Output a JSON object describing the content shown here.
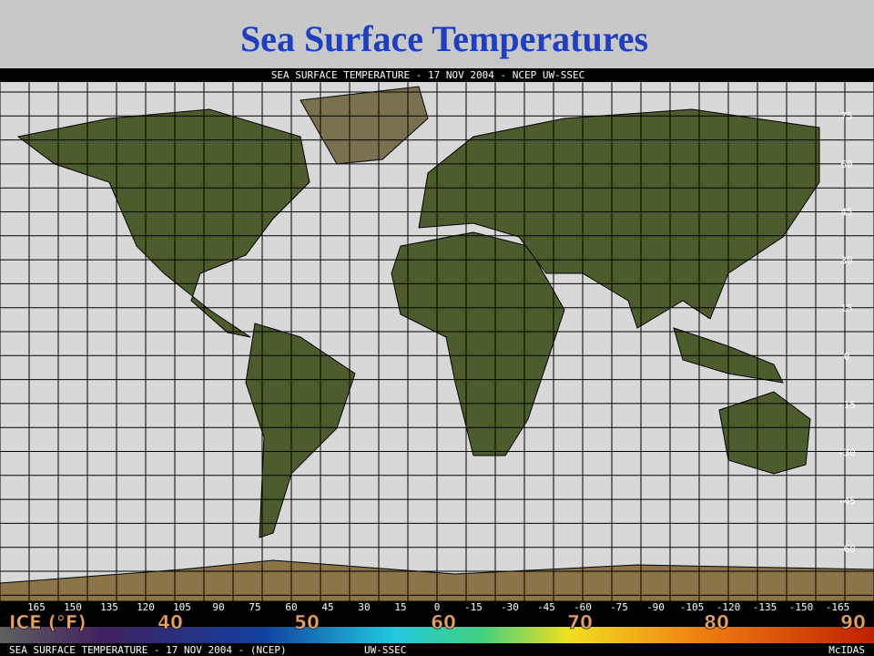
{
  "title": "Sea Surface Temperatures",
  "map": {
    "header": "SEA SURFACE TEMPERATURE - 17 NOV 2004 - NCEP UW-SSEC",
    "latitude_labels": [
      "75",
      "60",
      "45",
      "30",
      "15",
      "0",
      "-15",
      "-30",
      "-45",
      "-60"
    ],
    "longitude_labels": [
      "165",
      "150",
      "135",
      "120",
      "105",
      "90",
      "75",
      "60",
      "45",
      "30",
      "15",
      "0",
      "-15",
      "-30",
      "-45",
      "-60",
      "-75",
      "-90",
      "-105",
      "-120",
      "-135",
      "-150",
      "-165"
    ]
  },
  "legend": {
    "title": "ICE (°F)",
    "labels": [
      "40",
      "50",
      "60",
      "70",
      "80",
      "90"
    ]
  },
  "footer": {
    "caption": "SEA SURFACE TEMPERATURE - 17 NOV 2004 - (NCEP)",
    "source": "UW-SSEC",
    "software": "McIDAS"
  }
}
